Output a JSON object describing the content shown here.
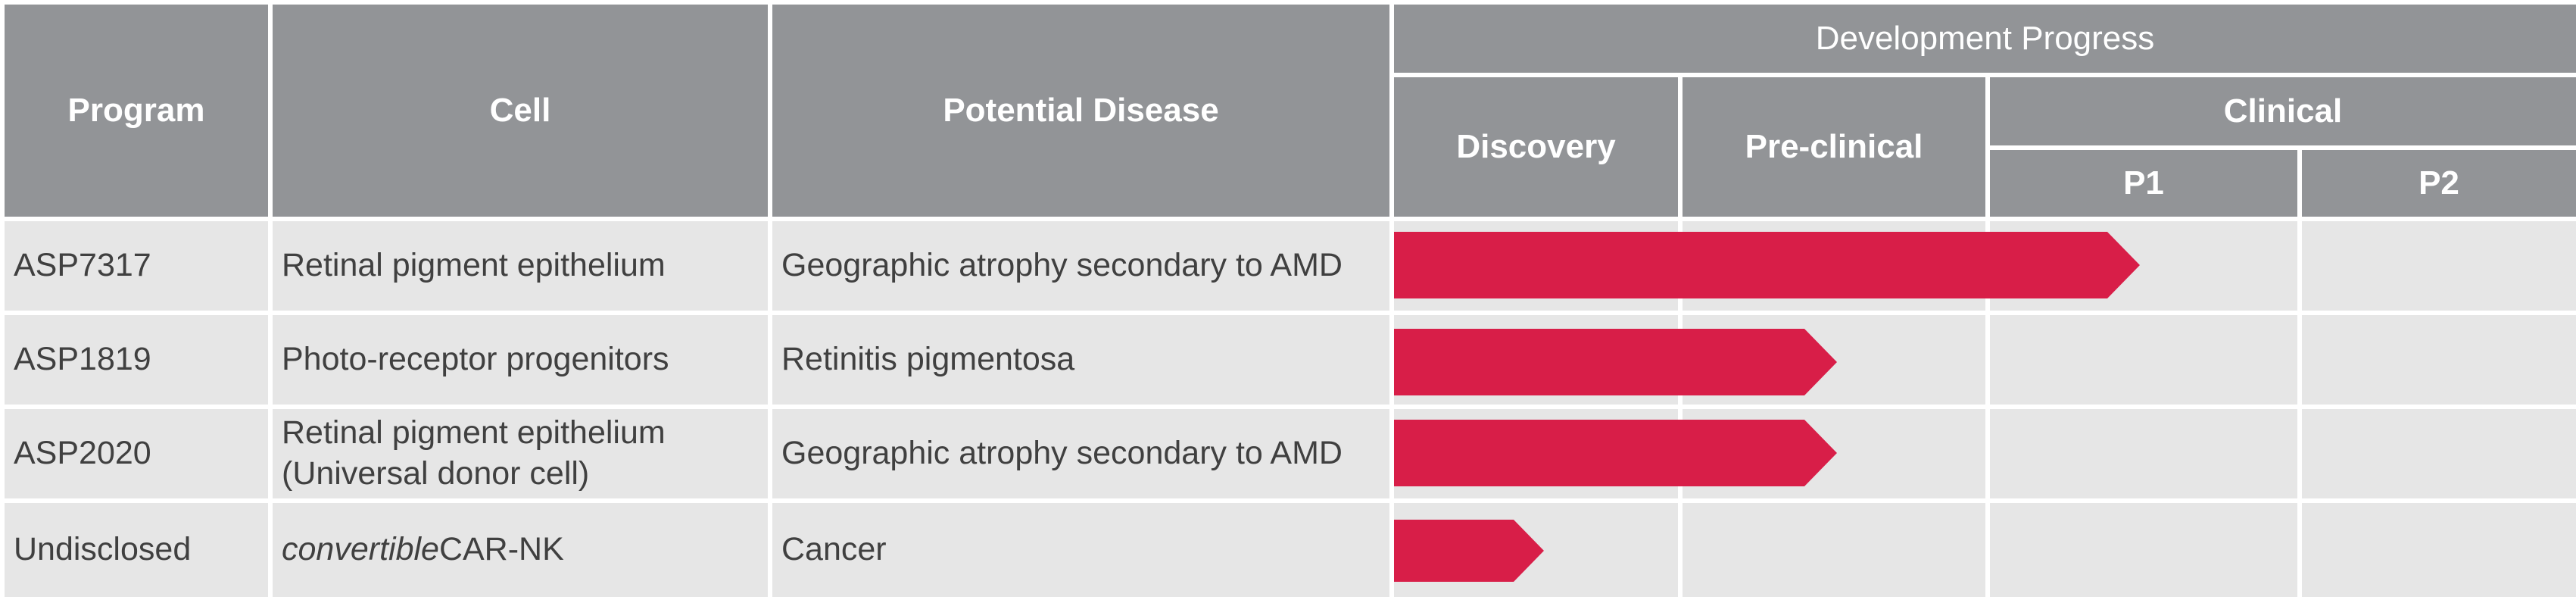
{
  "header": {
    "program": "Program",
    "cell": "Cell",
    "disease": "Potential Disease",
    "development_progress": "Development Progress",
    "discovery": "Discovery",
    "preclinical": "Pre-clinical",
    "clinical": "Clinical",
    "p1": "P1",
    "p2": "P2"
  },
  "rows": [
    {
      "program": "ASP7317",
      "cell_line1": "Retinal pigment epithelium",
      "cell_line2": "",
      "disease": "Geographic atrophy secondary to AMD",
      "progress_stage": "P1"
    },
    {
      "program": "ASP1819",
      "cell_line1": "Photo-receptor progenitors",
      "cell_line2": "",
      "disease": "Retinitis pigmentosa",
      "progress_stage": "Pre-clinical"
    },
    {
      "program": "ASP2020",
      "cell_line1": "Retinal pigment epithelium",
      "cell_line2": "(Universal donor cell)",
      "disease": "Geographic atrophy secondary to AMD",
      "progress_stage": "Pre-clinical"
    },
    {
      "program": "Undisclosed",
      "cell_italic": "convertible",
      "cell_rest": "CAR-NK",
      "disease": "Cancer",
      "progress_stage": "Discovery"
    }
  ],
  "colors": {
    "header_bg": "#929497",
    "row_bg": "#e6e6e6",
    "bar": "#d81e48",
    "text": "#404040"
  }
}
